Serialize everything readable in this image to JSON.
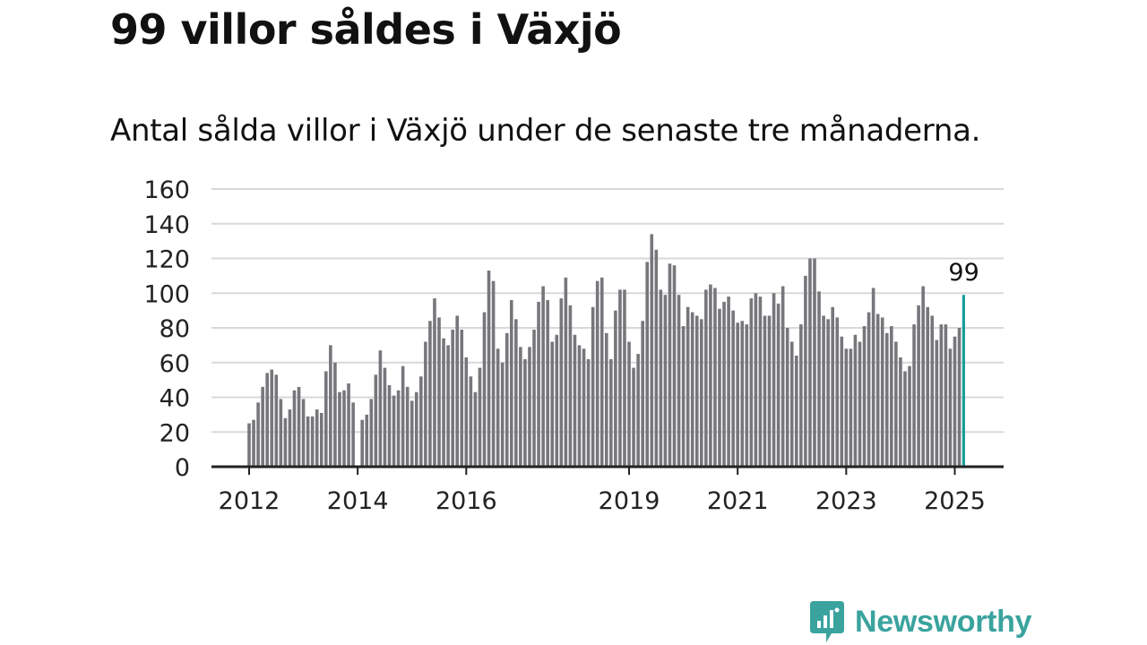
{
  "header": {
    "title": "99 villor såldes i Växjö",
    "subtitle": "Antal sålda villor i Växjö under de senaste tre månaderna."
  },
  "brand": {
    "name": "Newsworthy",
    "icon": "newsworthy-logo-icon",
    "color": "#3aa39e"
  },
  "chart_data": {
    "type": "bar",
    "title": "99 villor såldes i Växjö",
    "subtitle": "Antal sålda villor i Växjö under de senaste tre månaderna.",
    "xlabel": "",
    "ylabel": "",
    "ylim": [
      0,
      160
    ],
    "yticks": [
      0,
      20,
      40,
      60,
      80,
      100,
      120,
      140,
      160
    ],
    "xticks": [
      "2012",
      "2014",
      "2016",
      "2019",
      "2021",
      "2023",
      "2025"
    ],
    "grid": true,
    "legend": "none",
    "bar_color": "#77767b",
    "highlight_color": "#1a9e99",
    "highlight_label": "99",
    "start": "2012-01",
    "values": [
      25,
      27,
      37,
      46,
      54,
      56,
      53,
      39,
      28,
      33,
      44,
      46,
      39,
      29,
      29,
      33,
      31,
      55,
      70,
      60,
      43,
      44,
      48,
      37,
      0,
      27,
      30,
      39,
      53,
      67,
      57,
      47,
      41,
      44,
      58,
      46,
      38,
      43,
      52,
      72,
      84,
      97,
      86,
      74,
      70,
      79,
      87,
      79,
      63,
      52,
      43,
      57,
      89,
      113,
      107,
      68,
      60,
      77,
      96,
      85,
      69,
      62,
      69,
      79,
      95,
      104,
      96,
      72,
      76,
      97,
      109,
      93,
      76,
      70,
      68,
      62,
      92,
      107,
      109,
      77,
      62,
      90,
      102,
      102,
      72,
      57,
      65,
      84,
      118,
      134,
      125,
      102,
      99,
      117,
      116,
      99,
      81,
      92,
      89,
      87,
      85,
      102,
      105,
      103,
      91,
      95,
      98,
      90,
      83,
      84,
      82,
      97,
      100,
      98,
      87,
      87,
      100,
      94,
      104,
      80,
      72,
      64,
      82,
      110,
      120,
      120,
      101,
      87,
      85,
      92,
      86,
      75,
      68,
      68,
      76,
      72,
      81,
      89,
      103,
      88,
      86,
      77,
      81,
      72,
      63,
      55,
      58,
      82,
      93,
      104,
      92,
      87,
      73,
      82,
      82,
      68,
      75,
      80,
      99
    ]
  }
}
